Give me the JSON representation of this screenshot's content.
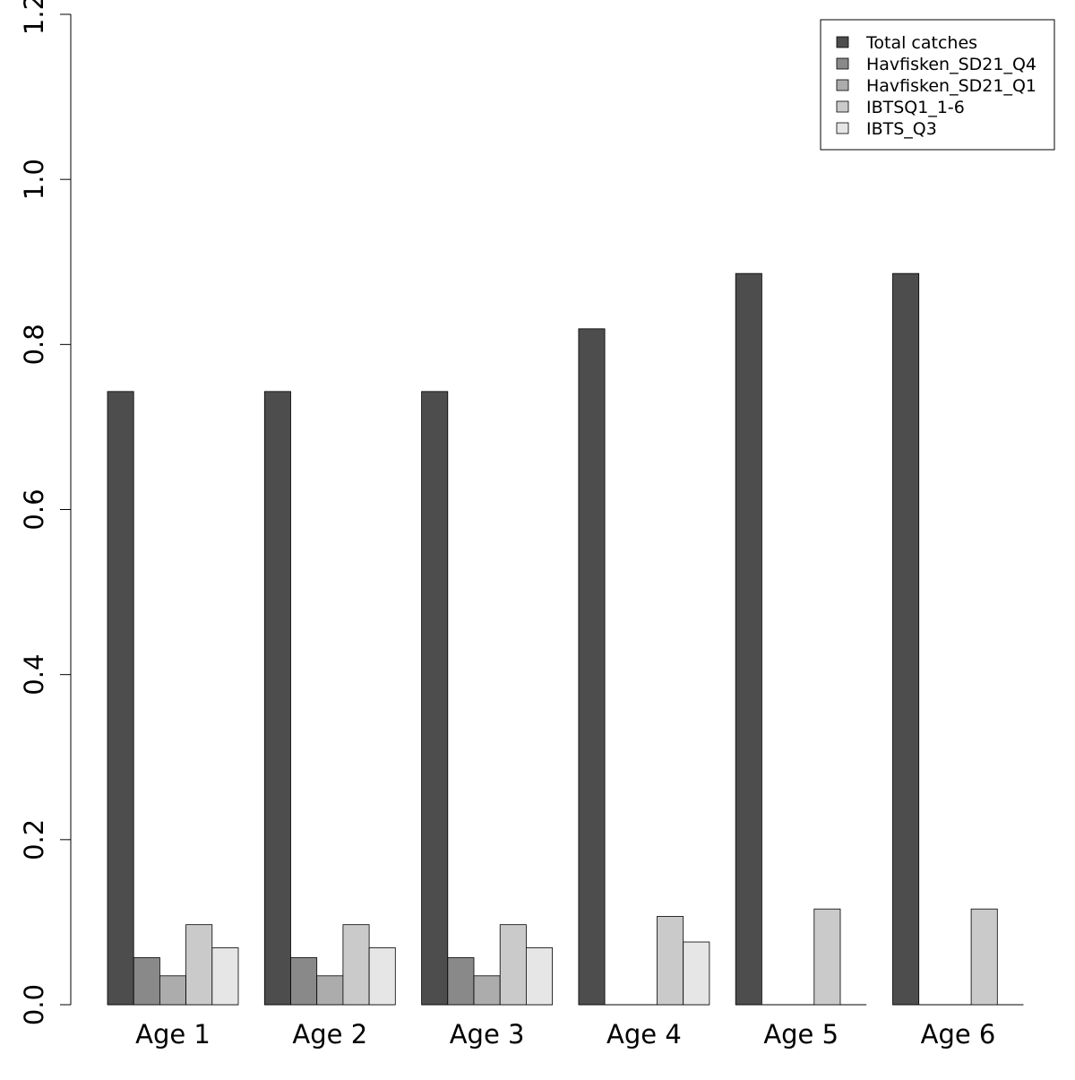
{
  "chart_data": {
    "type": "bar",
    "title": "",
    "xlabel": "",
    "ylabel": "",
    "categories": [
      "Age 1",
      "Age 2",
      "Age 3",
      "Age 4",
      "Age 5",
      "Age 6"
    ],
    "ylim": [
      0,
      1.2
    ],
    "yticks": [
      "0.0",
      "0.2",
      "0.4",
      "0.6",
      "0.8",
      "1.0",
      "1.2"
    ],
    "grid": false,
    "legend_position": "top-right",
    "series": [
      {
        "name": "Total catches",
        "color": "#4d4d4d",
        "values": [
          0.743,
          0.743,
          0.743,
          0.819,
          0.886,
          0.886
        ]
      },
      {
        "name": "Havfisken_SD21_Q4",
        "color": "#898989",
        "values": [
          0.057,
          0.057,
          0.057,
          0,
          0,
          0
        ]
      },
      {
        "name": "Havfisken_SD21_Q1",
        "color": "#acacac",
        "values": [
          0.035,
          0.035,
          0.035,
          0,
          0,
          0
        ]
      },
      {
        "name": "IBTSQ1_1-6",
        "color": "#cacaca",
        "values": [
          0.097,
          0.097,
          0.097,
          0.107,
          0.116,
          0.116
        ]
      },
      {
        "name": "IBTS_Q3",
        "color": "#e6e6e6",
        "values": [
          0.069,
          0.069,
          0.069,
          0.076,
          0,
          0
        ]
      }
    ]
  }
}
